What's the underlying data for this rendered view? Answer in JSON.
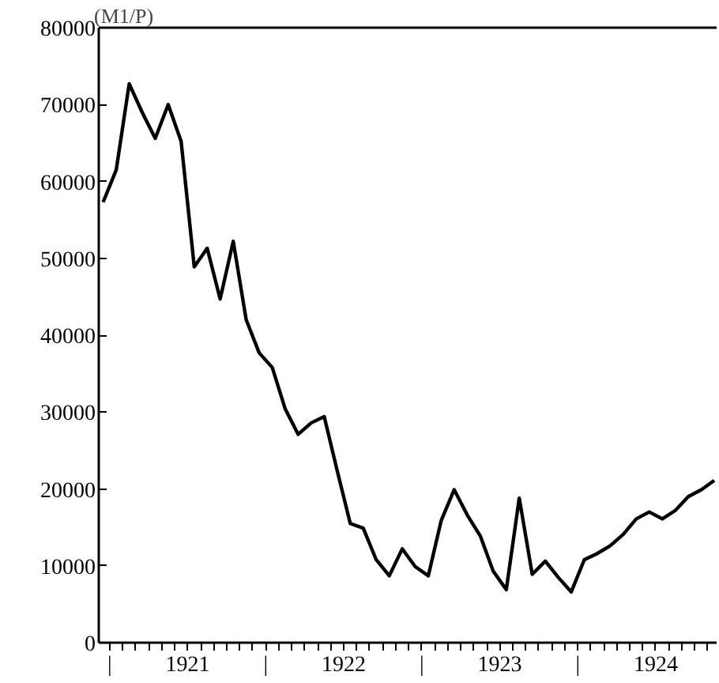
{
  "chart_data": {
    "type": "line",
    "ylabel": "(M1/P)",
    "x": [
      1920.958,
      1921.042,
      1921.125,
      1921.208,
      1921.292,
      1921.375,
      1921.458,
      1921.542,
      1921.625,
      1921.708,
      1921.792,
      1921.875,
      1921.958,
      1922.042,
      1922.125,
      1922.208,
      1922.292,
      1922.375,
      1922.458,
      1922.542,
      1922.625,
      1922.708,
      1922.792,
      1922.875,
      1922.958,
      1923.042,
      1923.125,
      1923.208,
      1923.292,
      1923.375,
      1923.458,
      1923.542,
      1923.625,
      1923.708,
      1923.792,
      1923.875,
      1923.958,
      1924.042,
      1924.125,
      1924.208,
      1924.292,
      1924.375,
      1924.458,
      1924.542,
      1924.625,
      1924.708,
      1924.792,
      1924.875
    ],
    "series": [
      {
        "color": "#000000",
        "values": [
          57300,
          61500,
          72700,
          69000,
          65600,
          70000,
          65200,
          48900,
          51300,
          44700,
          52200,
          42000,
          37700,
          35800,
          30400,
          27100,
          28600,
          29400,
          22400,
          15500,
          14900,
          10800,
          8700,
          12200,
          9900,
          8700,
          15900,
          19900,
          16600,
          13900,
          9300,
          6900,
          18800,
          8900,
          10600,
          8500,
          6600,
          10800,
          11600,
          12600,
          14100,
          16100,
          17000,
          16100,
          17200,
          19000,
          19900,
          21100
        ]
      }
    ],
    "xlim": [
      1920.93,
      1924.89
    ],
    "xticks": [
      {
        "value": 1921,
        "label": "|"
      },
      {
        "value": 1921.0833,
        "label": null
      },
      {
        "value": 1921.1667,
        "label": null
      },
      {
        "value": 1921.25,
        "label": null
      },
      {
        "value": 1921.3333,
        "label": null
      },
      {
        "value": 1921.4167,
        "label": null
      },
      {
        "value": 1921.5,
        "label": "1921"
      },
      {
        "value": 1921.5833,
        "label": null
      },
      {
        "value": 1921.6667,
        "label": null
      },
      {
        "value": 1921.75,
        "label": null
      },
      {
        "value": 1921.8333,
        "label": null
      },
      {
        "value": 1921.9167,
        "label": null
      },
      {
        "value": 1922,
        "label": "|"
      },
      {
        "value": 1922.0833,
        "label": null
      },
      {
        "value": 1922.1667,
        "label": null
      },
      {
        "value": 1922.25,
        "label": null
      },
      {
        "value": 1922.3333,
        "label": null
      },
      {
        "value": 1922.4167,
        "label": null
      },
      {
        "value": 1922.5,
        "label": "1922"
      },
      {
        "value": 1922.5833,
        "label": null
      },
      {
        "value": 1922.6667,
        "label": null
      },
      {
        "value": 1922.75,
        "label": null
      },
      {
        "value": 1922.8333,
        "label": null
      },
      {
        "value": 1922.9167,
        "label": null
      },
      {
        "value": 1923,
        "label": "|"
      },
      {
        "value": 1923.0833,
        "label": null
      },
      {
        "value": 1923.1667,
        "label": null
      },
      {
        "value": 1923.25,
        "label": null
      },
      {
        "value": 1923.3333,
        "label": null
      },
      {
        "value": 1923.4167,
        "label": null
      },
      {
        "value": 1923.5,
        "label": "1923"
      },
      {
        "value": 1923.5833,
        "label": null
      },
      {
        "value": 1923.6667,
        "label": null
      },
      {
        "value": 1923.75,
        "label": null
      },
      {
        "value": 1923.8333,
        "label": null
      },
      {
        "value": 1923.9167,
        "label": null
      },
      {
        "value": 1924,
        "label": "|"
      },
      {
        "value": 1924.0833,
        "label": null
      },
      {
        "value": 1924.1667,
        "label": null
      },
      {
        "value": 1924.25,
        "label": null
      },
      {
        "value": 1924.3333,
        "label": null
      },
      {
        "value": 1924.4167,
        "label": null
      },
      {
        "value": 1924.5,
        "label": "1924"
      },
      {
        "value": 1924.5833,
        "label": null
      },
      {
        "value": 1924.6667,
        "label": null
      },
      {
        "value": 1924.75,
        "label": null
      },
      {
        "value": 1924.8333,
        "label": null
      }
    ],
    "ylim": [
      0,
      80000
    ],
    "yticks": [
      0,
      10000,
      20000,
      30000,
      40000,
      50000,
      60000,
      70000,
      80000
    ],
    "grid": false,
    "line_style": "solid"
  }
}
